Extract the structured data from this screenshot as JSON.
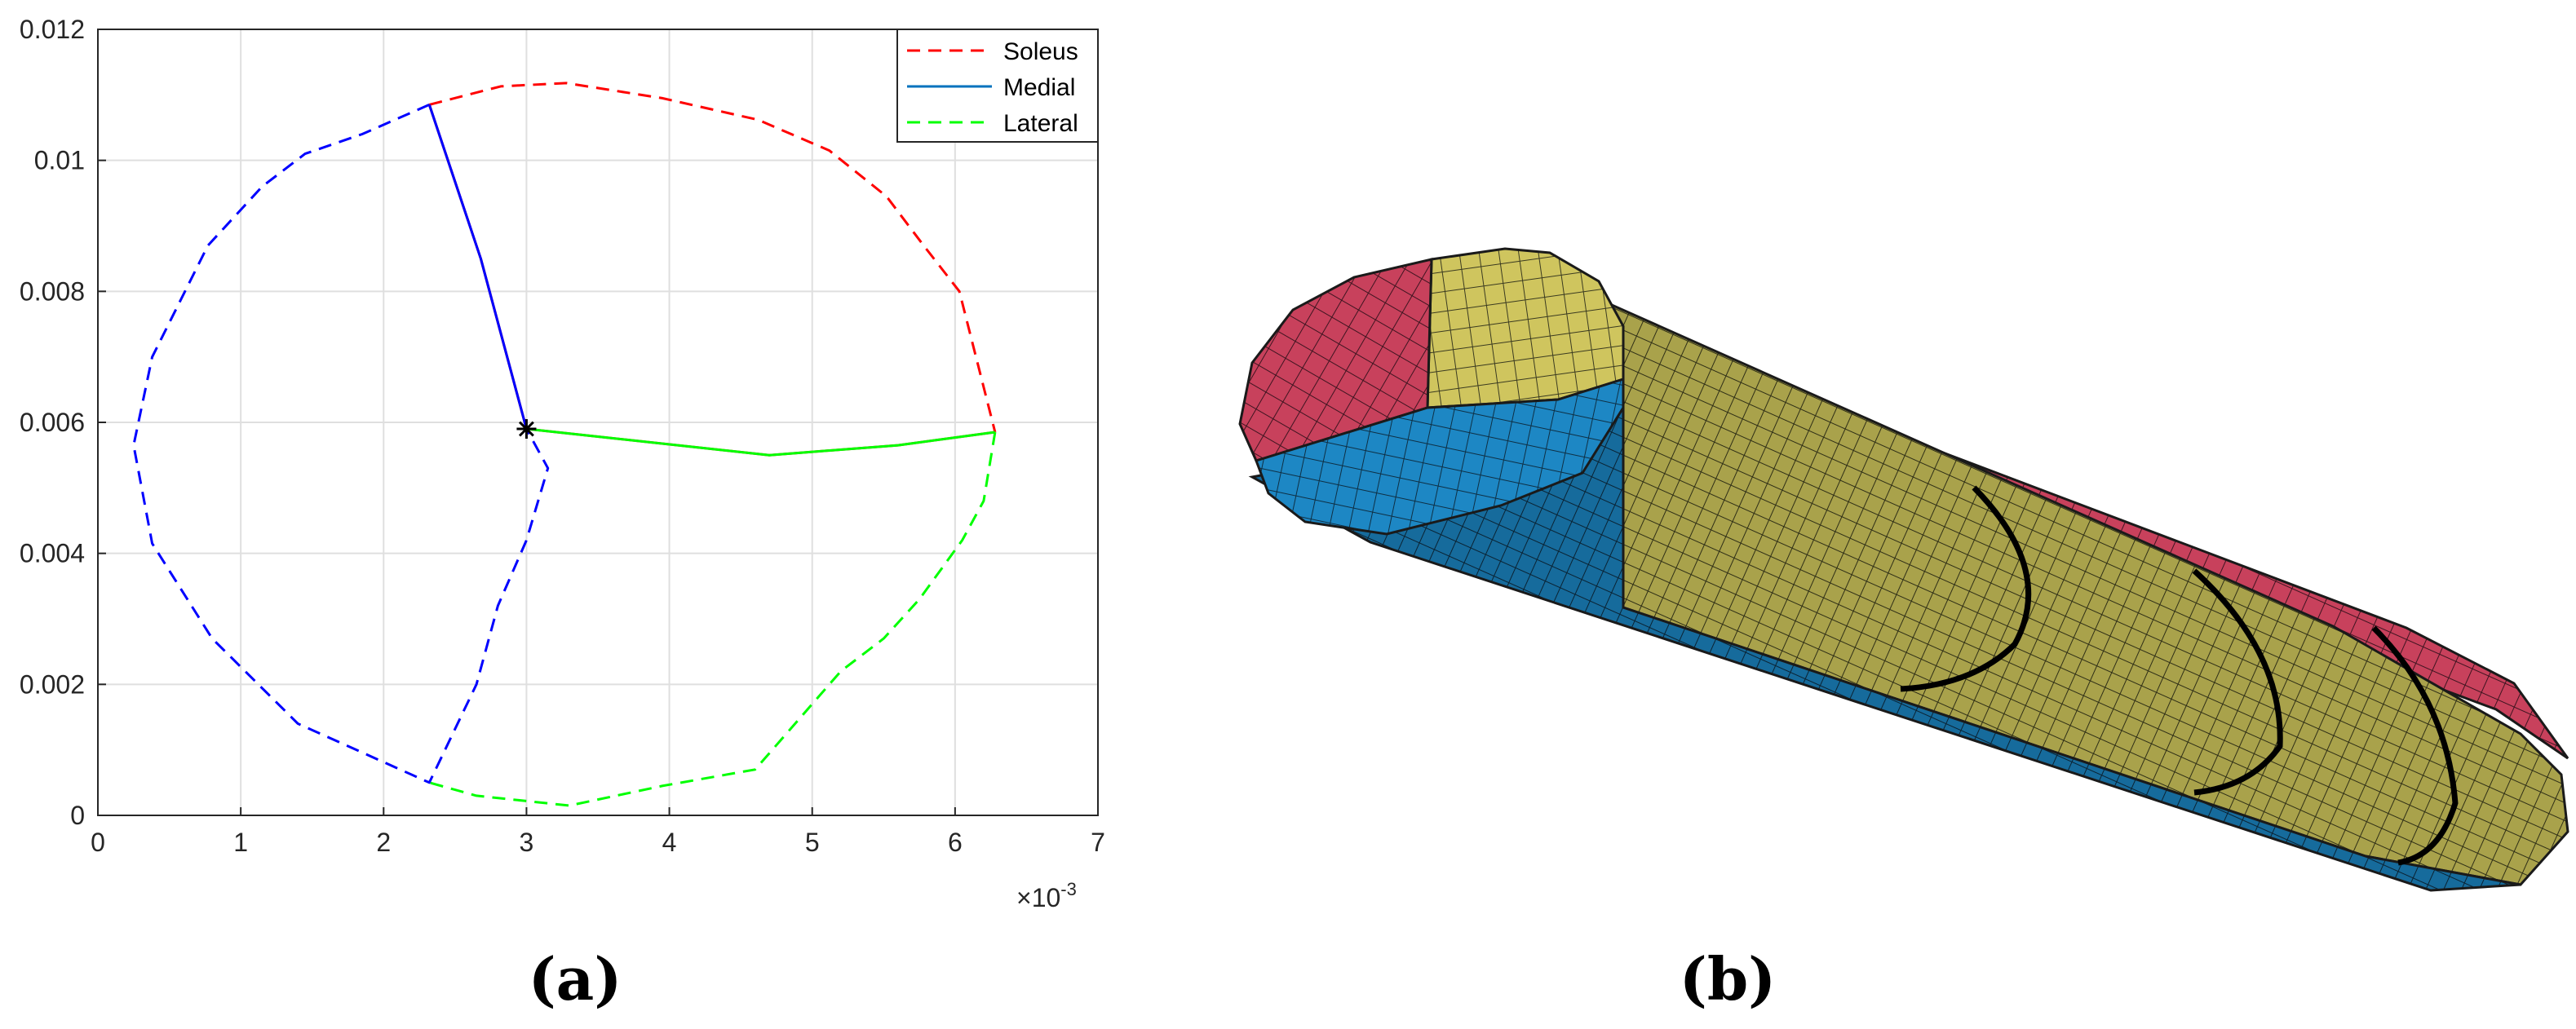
{
  "captions": {
    "a": "(a)",
    "b": "(b)"
  },
  "chart_data": {
    "type": "line",
    "title": "",
    "xlabel": "",
    "ylabel": "",
    "x_exponent_label": "×10",
    "x_exponent_value": "-3",
    "xlim": [
      0,
      0.007
    ],
    "ylim": [
      0,
      0.012
    ],
    "xticks": [
      0,
      0.001,
      0.002,
      0.003,
      0.004,
      0.005,
      0.006,
      0.007
    ],
    "xtick_labels": [
      "0",
      "1",
      "2",
      "3",
      "4",
      "5",
      "6",
      "7"
    ],
    "yticks": [
      0,
      0.002,
      0.004,
      0.006,
      0.008,
      0.01,
      0.012
    ],
    "ytick_labels": [
      "0",
      "0.002",
      "0.004",
      "0.006",
      "0.008",
      "0.01",
      "0.012"
    ],
    "grid": true,
    "legend_position": "top-right",
    "legend": [
      {
        "label": "Soleus",
        "color": "#ff0000",
        "style": "dashed"
      },
      {
        "label": "Medial",
        "color": "#0072bd",
        "style": "solid"
      },
      {
        "label": "Lateral",
        "color": "#00ff00",
        "style": "dashed"
      }
    ],
    "series": [
      {
        "name": "Soleus",
        "color": "#ff0000",
        "style": "dashed",
        "x": [
          0.00232,
          0.00282,
          0.00328,
          0.00395,
          0.00462,
          0.00512,
          0.00552,
          0.00578,
          0.00603,
          0.00628
        ],
        "y": [
          0.01085,
          0.01113,
          0.01118,
          0.01095,
          0.01062,
          0.01015,
          0.00945,
          0.0087,
          0.008,
          0.00585
        ]
      },
      {
        "name": "",
        "color": "#0000ff",
        "style": "dashed",
        "x": [
          0.00232,
          0.00185,
          0.00145,
          0.00115,
          0.00077,
          0.00038,
          0.00025,
          0.00038,
          0.0008,
          0.0014,
          0.00232,
          0.00265,
          0.0028,
          0.003,
          0.00315,
          0.003
        ],
        "y": [
          0.01085,
          0.0104,
          0.0101,
          0.0096,
          0.0087,
          0.007,
          0.00565,
          0.00415,
          0.0027,
          0.0014,
          0.0005,
          0.002,
          0.0032,
          0.0042,
          0.0053,
          0.0059
        ]
      },
      {
        "name": "Medial",
        "color": "#0072bd",
        "style": "solid",
        "x": [
          0.003,
          0.00268,
          0.00232
        ],
        "y": [
          0.0059,
          0.0085,
          0.01085
        ]
      },
      {
        "name": "",
        "color": "#ff0000",
        "style": "solid",
        "x": [
          0.003,
          0.00268,
          0.00232
        ],
        "y": [
          0.0059,
          0.0085,
          0.01085
        ]
      },
      {
        "name": "",
        "color": "#0000ff",
        "style": "solid",
        "x": [
          0.003,
          0.00268,
          0.00232
        ],
        "y": [
          0.0059,
          0.0085,
          0.01085
        ]
      },
      {
        "name": "Lateral",
        "color": "#00ff00",
        "style": "dashed",
        "x": [
          0.00628,
          0.0062,
          0.00605,
          0.00575,
          0.0055,
          0.0052,
          0.0046,
          0.00395,
          0.0033,
          0.00265,
          0.00232
        ],
        "y": [
          0.00585,
          0.0048,
          0.0042,
          0.0033,
          0.0027,
          0.0022,
          0.0007,
          0.00045,
          0.00015,
          0.0003,
          0.0005
        ]
      },
      {
        "name": "",
        "color": "#ff0000",
        "style": "solid",
        "x": [
          0.003,
          0.0047,
          0.0056,
          0.00628
        ],
        "y": [
          0.0059,
          0.0055,
          0.00565,
          0.00585
        ]
      },
      {
        "name": "",
        "color": "#00ff00",
        "style": "solid",
        "x": [
          0.003,
          0.0047,
          0.0056,
          0.00628
        ],
        "y": [
          0.0059,
          0.0055,
          0.00565,
          0.00585
        ]
      }
    ],
    "center_marker": {
      "x": 0.003,
      "y": 0.0059,
      "symbol": "*"
    }
  },
  "mesh_colors": {
    "crimson": "#c8415c",
    "yellow": "#cfc55e",
    "blue": "#1d87c4",
    "edge": "#1a1a1a"
  }
}
